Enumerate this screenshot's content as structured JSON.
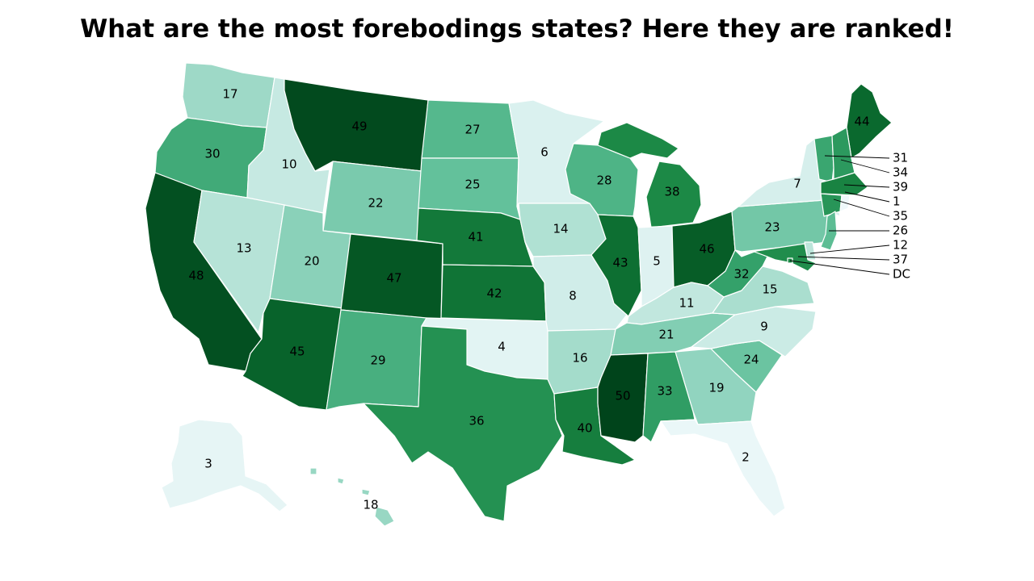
{
  "title": "What are the most forebodings states? Here they are ranked!",
  "colors": {
    "low": "#f2fafc",
    "high": "#00441b",
    "border": "#ffffff"
  },
  "map_data": {
    "type": "choropleth",
    "region": "United States",
    "scale_min": 1,
    "scale_max": 50,
    "states": [
      {
        "id": "WA",
        "rank": 17
      },
      {
        "id": "OR",
        "rank": 30
      },
      {
        "id": "CA",
        "rank": 48
      },
      {
        "id": "ID",
        "rank": 10
      },
      {
        "id": "NV",
        "rank": 13
      },
      {
        "id": "MT",
        "rank": 49
      },
      {
        "id": "WY",
        "rank": 22
      },
      {
        "id": "UT",
        "rank": 20
      },
      {
        "id": "AZ",
        "rank": 45
      },
      {
        "id": "CO",
        "rank": 47
      },
      {
        "id": "NM",
        "rank": 29
      },
      {
        "id": "ND",
        "rank": 27
      },
      {
        "id": "SD",
        "rank": 25
      },
      {
        "id": "NE",
        "rank": 41
      },
      {
        "id": "KS",
        "rank": 42
      },
      {
        "id": "OK",
        "rank": 4
      },
      {
        "id": "TX",
        "rank": 36
      },
      {
        "id": "MN",
        "rank": 6
      },
      {
        "id": "IA",
        "rank": 14
      },
      {
        "id": "MO",
        "rank": 8
      },
      {
        "id": "AR",
        "rank": 16
      },
      {
        "id": "LA",
        "rank": 40
      },
      {
        "id": "WI",
        "rank": 28
      },
      {
        "id": "IL",
        "rank": 43
      },
      {
        "id": "MI",
        "rank": 38
      },
      {
        "id": "IN",
        "rank": 5
      },
      {
        "id": "OH",
        "rank": 46
      },
      {
        "id": "KY",
        "rank": 11
      },
      {
        "id": "TN",
        "rank": 21
      },
      {
        "id": "MS",
        "rank": 50
      },
      {
        "id": "AL",
        "rank": 33
      },
      {
        "id": "GA",
        "rank": 19
      },
      {
        "id": "FL",
        "rank": 2
      },
      {
        "id": "SC",
        "rank": 24
      },
      {
        "id": "NC",
        "rank": 9
      },
      {
        "id": "VA",
        "rank": 15
      },
      {
        "id": "WV",
        "rank": 32
      },
      {
        "id": "PA",
        "rank": 23
      },
      {
        "id": "NY",
        "rank": 7
      },
      {
        "id": "ME",
        "rank": 44
      },
      {
        "id": "AK",
        "rank": 3
      },
      {
        "id": "HI",
        "rank": 18
      },
      {
        "id": "VT",
        "rank": 31
      },
      {
        "id": "NH",
        "rank": 34
      },
      {
        "id": "MA",
        "rank": 39
      },
      {
        "id": "RI",
        "rank": 1
      },
      {
        "id": "CT",
        "rank": 35
      },
      {
        "id": "NJ",
        "rank": 26
      },
      {
        "id": "DE",
        "rank": 12
      },
      {
        "id": "MD",
        "rank": 37
      },
      {
        "id": "DC",
        "rank": "DC"
      }
    ],
    "callouts": [
      "31",
      "34",
      "39",
      "1",
      "35",
      "26",
      "12",
      "37",
      "DC"
    ]
  }
}
